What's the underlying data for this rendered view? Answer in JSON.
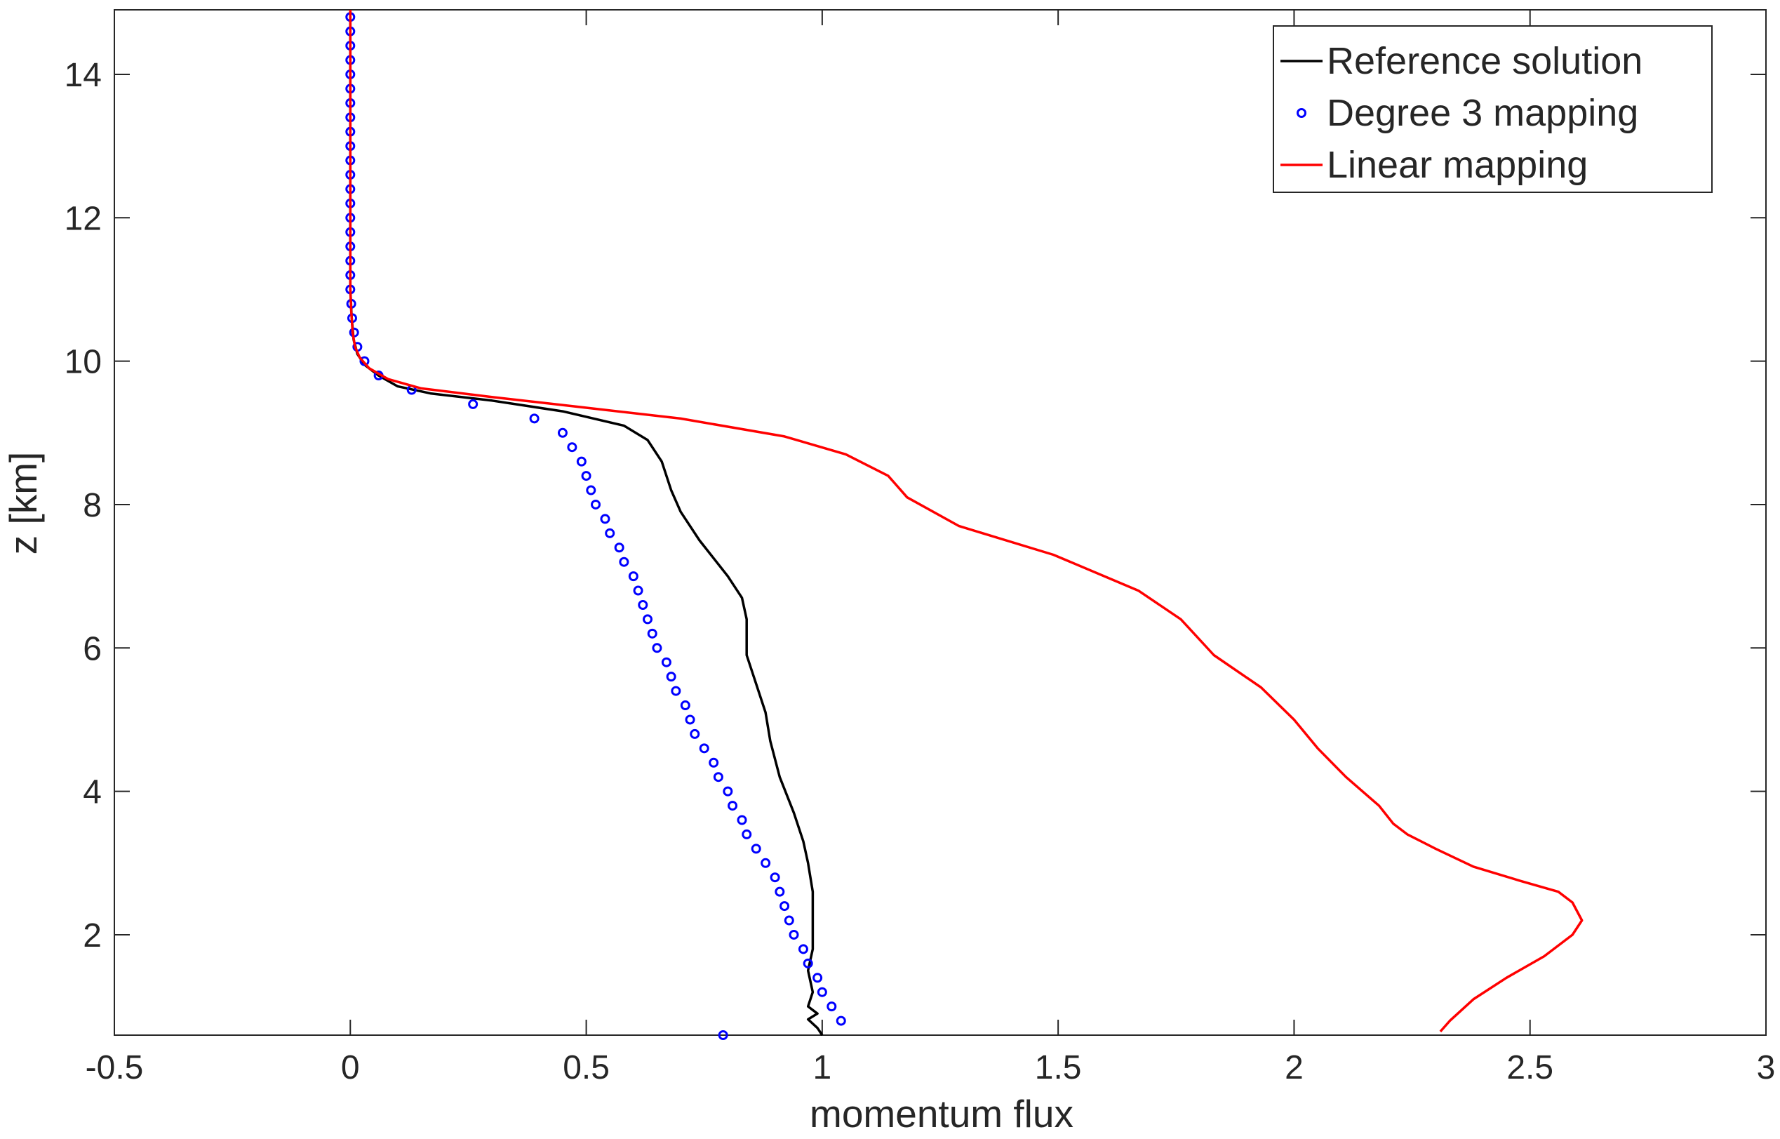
{
  "chart_data": {
    "type": "line",
    "xlabel": "momentum flux",
    "ylabel": "z [km]",
    "xlim": [
      -0.5,
      3
    ],
    "ylim": [
      0.6,
      14.9
    ],
    "xticks": [
      -0.5,
      0,
      0.5,
      1,
      1.5,
      2,
      2.5,
      3
    ],
    "xtick_labels": [
      "-0.5",
      "0",
      "0.5",
      "1",
      "1.5",
      "2",
      "2.5",
      "3"
    ],
    "yticks": [
      2,
      4,
      6,
      8,
      10,
      12,
      14
    ],
    "ytick_labels": [
      "2",
      "4",
      "6",
      "8",
      "10",
      "12",
      "14"
    ],
    "grid": false,
    "legend_position": "top-right",
    "series": [
      {
        "name": "Reference solution",
        "style": "line",
        "color": "#000000",
        "points": [
          [
            1.0,
            0.6
          ],
          [
            0.99,
            0.7
          ],
          [
            0.97,
            0.82
          ],
          [
            0.99,
            0.9
          ],
          [
            0.97,
            1.0
          ],
          [
            0.98,
            1.2
          ],
          [
            0.97,
            1.5
          ],
          [
            0.98,
            1.8
          ],
          [
            0.98,
            2.2
          ],
          [
            0.98,
            2.6
          ],
          [
            0.97,
            3.0
          ],
          [
            0.96,
            3.3
          ],
          [
            0.94,
            3.7
          ],
          [
            0.91,
            4.2
          ],
          [
            0.89,
            4.7
          ],
          [
            0.88,
            5.1
          ],
          [
            0.86,
            5.5
          ],
          [
            0.84,
            5.9
          ],
          [
            0.84,
            6.4
          ],
          [
            0.83,
            6.7
          ],
          [
            0.8,
            7.0
          ],
          [
            0.74,
            7.5
          ],
          [
            0.7,
            7.9
          ],
          [
            0.68,
            8.2
          ],
          [
            0.66,
            8.6
          ],
          [
            0.63,
            8.9
          ],
          [
            0.58,
            9.1
          ],
          [
            0.45,
            9.3
          ],
          [
            0.3,
            9.45
          ],
          [
            0.17,
            9.55
          ],
          [
            0.1,
            9.65
          ],
          [
            0.06,
            9.8
          ],
          [
            0.03,
            9.95
          ],
          [
            0.015,
            10.1
          ],
          [
            0.007,
            10.3
          ],
          [
            0.003,
            10.6
          ],
          [
            0.0,
            11.0
          ],
          [
            0.0,
            12.0
          ],
          [
            0.0,
            13.0
          ],
          [
            0.0,
            14.9
          ]
        ]
      },
      {
        "name": "Degree 3 mapping",
        "style": "markers",
        "color": "#0000ff",
        "points": [
          [
            0.79,
            0.6
          ],
          [
            1.04,
            0.8
          ],
          [
            1.02,
            1.0
          ],
          [
            1.0,
            1.2
          ],
          [
            0.99,
            1.4
          ],
          [
            0.97,
            1.6
          ],
          [
            0.96,
            1.8
          ],
          [
            0.94,
            2.0
          ],
          [
            0.93,
            2.2
          ],
          [
            0.92,
            2.4
          ],
          [
            0.91,
            2.6
          ],
          [
            0.9,
            2.8
          ],
          [
            0.88,
            3.0
          ],
          [
            0.86,
            3.2
          ],
          [
            0.84,
            3.4
          ],
          [
            0.83,
            3.6
          ],
          [
            0.81,
            3.8
          ],
          [
            0.8,
            4.0
          ],
          [
            0.78,
            4.2
          ],
          [
            0.77,
            4.4
          ],
          [
            0.75,
            4.6
          ],
          [
            0.73,
            4.8
          ],
          [
            0.72,
            5.0
          ],
          [
            0.71,
            5.2
          ],
          [
            0.69,
            5.4
          ],
          [
            0.68,
            5.6
          ],
          [
            0.67,
            5.8
          ],
          [
            0.65,
            6.0
          ],
          [
            0.64,
            6.2
          ],
          [
            0.63,
            6.4
          ],
          [
            0.62,
            6.6
          ],
          [
            0.61,
            6.8
          ],
          [
            0.6,
            7.0
          ],
          [
            0.58,
            7.2
          ],
          [
            0.57,
            7.4
          ],
          [
            0.55,
            7.6
          ],
          [
            0.54,
            7.8
          ],
          [
            0.52,
            8.0
          ],
          [
            0.51,
            8.2
          ],
          [
            0.5,
            8.4
          ],
          [
            0.49,
            8.6
          ],
          [
            0.47,
            8.8
          ],
          [
            0.45,
            9.0
          ],
          [
            0.39,
            9.2
          ],
          [
            0.26,
            9.4
          ],
          [
            0.13,
            9.6
          ],
          [
            0.06,
            9.8
          ],
          [
            0.03,
            10.0
          ],
          [
            0.015,
            10.2
          ],
          [
            0.008,
            10.4
          ],
          [
            0.004,
            10.6
          ],
          [
            0.002,
            10.8
          ],
          [
            0.0,
            11.0
          ],
          [
            0.0,
            11.2
          ],
          [
            0.0,
            11.4
          ],
          [
            0.0,
            11.6
          ],
          [
            0.0,
            11.8
          ],
          [
            0.0,
            12.0
          ],
          [
            0.0,
            12.2
          ],
          [
            0.0,
            12.4
          ],
          [
            0.0,
            12.6
          ],
          [
            0.0,
            12.8
          ],
          [
            0.0,
            13.0
          ],
          [
            0.0,
            13.2
          ],
          [
            0.0,
            13.4
          ],
          [
            0.0,
            13.6
          ],
          [
            0.0,
            13.8
          ],
          [
            0.0,
            14.0
          ],
          [
            0.0,
            14.2
          ],
          [
            0.0,
            14.4
          ],
          [
            0.0,
            14.6
          ],
          [
            0.0,
            14.8
          ]
        ]
      },
      {
        "name": "Linear mapping",
        "style": "line",
        "color": "#ff0000",
        "points": [
          [
            2.31,
            0.65
          ],
          [
            2.33,
            0.8
          ],
          [
            2.38,
            1.1
          ],
          [
            2.45,
            1.4
          ],
          [
            2.53,
            1.7
          ],
          [
            2.59,
            2.0
          ],
          [
            2.61,
            2.2
          ],
          [
            2.59,
            2.45
          ],
          [
            2.56,
            2.6
          ],
          [
            2.48,
            2.75
          ],
          [
            2.38,
            2.95
          ],
          [
            2.3,
            3.2
          ],
          [
            2.24,
            3.4
          ],
          [
            2.21,
            3.55
          ],
          [
            2.18,
            3.8
          ],
          [
            2.11,
            4.2
          ],
          [
            2.05,
            4.6
          ],
          [
            2.0,
            5.0
          ],
          [
            1.93,
            5.45
          ],
          [
            1.83,
            5.9
          ],
          [
            1.76,
            6.4
          ],
          [
            1.67,
            6.8
          ],
          [
            1.49,
            7.3
          ],
          [
            1.29,
            7.7
          ],
          [
            1.18,
            8.1
          ],
          [
            1.14,
            8.4
          ],
          [
            1.05,
            8.7
          ],
          [
            0.92,
            8.95
          ],
          [
            0.7,
            9.2
          ],
          [
            0.5,
            9.35
          ],
          [
            0.3,
            9.5
          ],
          [
            0.15,
            9.62
          ],
          [
            0.08,
            9.75
          ],
          [
            0.04,
            9.9
          ],
          [
            0.02,
            10.05
          ],
          [
            0.01,
            10.2
          ],
          [
            0.005,
            10.4
          ],
          [
            0.002,
            10.7
          ],
          [
            0.0,
            11.0
          ],
          [
            0.0,
            12.0
          ],
          [
            0.0,
            13.0
          ],
          [
            0.0,
            14.9
          ]
        ]
      }
    ]
  }
}
